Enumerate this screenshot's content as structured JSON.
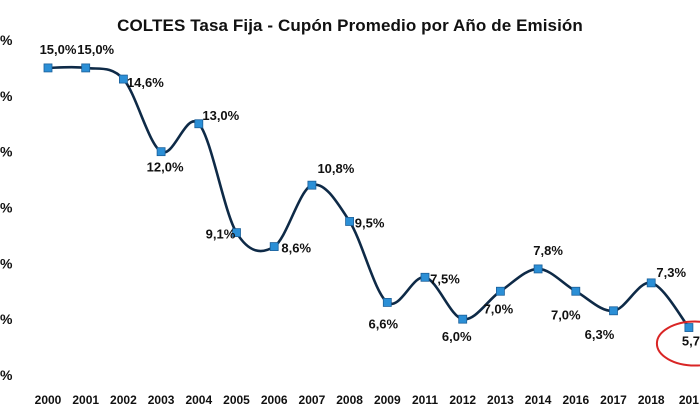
{
  "chart_data": {
    "type": "line",
    "title": "COLTES Tasa Fija - Cupón Promedio por Año de Emisión",
    "xlabel": "",
    "ylabel": "",
    "categories": [
      "2000",
      "2001",
      "2002",
      "2003",
      "2004",
      "2005",
      "2006",
      "2007",
      "2008",
      "2009",
      "2011",
      "2012",
      "2013",
      "2014",
      "2016",
      "2017",
      "2018",
      "201"
    ],
    "values": [
      15.0,
      15.0,
      14.6,
      12.0,
      13.0,
      9.1,
      8.6,
      10.8,
      9.5,
      6.6,
      7.5,
      6.0,
      7.0,
      7.8,
      7.0,
      6.3,
      7.3,
      5.7
    ],
    "data_labels": [
      "15,0%",
      "15,0%",
      "14,6%",
      "12,0%",
      "13,0%",
      "9,1%",
      "8,6%",
      "10,8%",
      "9,5%",
      "6,6%",
      "7,5%",
      "6,0%",
      "7,0%",
      "7,8%",
      "7,0%",
      "6,3%",
      "7,3%",
      "5,7"
    ],
    "y_tick_labels": [
      "%",
      "%",
      "%",
      "%",
      "%",
      "%",
      "%"
    ],
    "ylim": [
      4.0,
      16.0
    ],
    "grid": false,
    "legend": "none",
    "line_smooth": true,
    "highlight_index": 17,
    "colors": {
      "line": "#0e2a47",
      "marker": "#2b8fd6",
      "marker_stroke": "#1b5f99",
      "highlight": "#d92525",
      "text": "#111111"
    }
  }
}
